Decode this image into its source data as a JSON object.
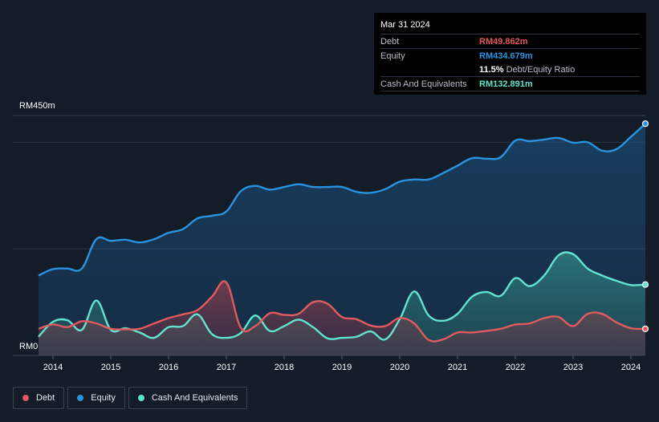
{
  "tooltip": {
    "date": "Mar 31 2024",
    "debt_label": "Debt",
    "debt_value": "RM49.862m",
    "equity_label": "Equity",
    "equity_value": "RM434.679m",
    "ratio_value": "11.5%",
    "ratio_label": "Debt/Equity Ratio",
    "cash_label": "Cash And Equivalents",
    "cash_value": "RM132.891m"
  },
  "legend": {
    "debt": "Debt",
    "equity": "Equity",
    "cash": "Cash And Equivalents"
  },
  "colors": {
    "background": "#141c28",
    "debt": "#e05a5e",
    "equity": "#2a93e0",
    "cash": "#62e3cf",
    "grid": "#2c3442",
    "axis_text": "#ffffff"
  },
  "chart_data": {
    "type": "area",
    "title": "",
    "xlabel": "",
    "ylabel": "",
    "y_unit": "RM m",
    "ylim": [
      0,
      450
    ],
    "xlim": [
      2013.75,
      2024.25
    ],
    "y_axis_labels": [
      {
        "value": 450,
        "text": "RM450m"
      },
      {
        "value": 0,
        "text": "RM0"
      }
    ],
    "gridlines": [
      400,
      200
    ],
    "x_ticks": [
      {
        "value": 2014,
        "text": "2014"
      },
      {
        "value": 2015,
        "text": "2015"
      },
      {
        "value": 2016,
        "text": "2016"
      },
      {
        "value": 2017,
        "text": "2017"
      },
      {
        "value": 2018,
        "text": "2018"
      },
      {
        "value": 2019,
        "text": "2019"
      },
      {
        "value": 2020,
        "text": "2020"
      },
      {
        "value": 2021,
        "text": "2021"
      },
      {
        "value": 2022,
        "text": "2022"
      },
      {
        "value": 2023,
        "text": "2023"
      },
      {
        "value": 2024,
        "text": "2024"
      }
    ],
    "series": [
      {
        "name": "Equity",
        "color": "#2a93e0",
        "points": [
          [
            2013.75,
            150
          ],
          [
            2014.0,
            162
          ],
          [
            2014.25,
            163
          ],
          [
            2014.5,
            163
          ],
          [
            2014.75,
            218
          ],
          [
            2015.0,
            215
          ],
          [
            2015.25,
            217
          ],
          [
            2015.5,
            212
          ],
          [
            2015.75,
            218
          ],
          [
            2016.0,
            230
          ],
          [
            2016.25,
            237
          ],
          [
            2016.5,
            257
          ],
          [
            2016.75,
            262
          ],
          [
            2017.0,
            270
          ],
          [
            2017.25,
            308
          ],
          [
            2017.5,
            318
          ],
          [
            2017.75,
            311
          ],
          [
            2018.0,
            316
          ],
          [
            2018.25,
            321
          ],
          [
            2018.5,
            316
          ],
          [
            2018.75,
            316
          ],
          [
            2019.0,
            316
          ],
          [
            2019.25,
            307
          ],
          [
            2019.5,
            305
          ],
          [
            2019.75,
            312
          ],
          [
            2020.0,
            326
          ],
          [
            2020.25,
            330
          ],
          [
            2020.5,
            330
          ],
          [
            2020.75,
            342
          ],
          [
            2021.0,
            356
          ],
          [
            2021.25,
            370
          ],
          [
            2021.5,
            369
          ],
          [
            2021.75,
            372
          ],
          [
            2022.0,
            403
          ],
          [
            2022.25,
            402
          ],
          [
            2022.5,
            405
          ],
          [
            2022.75,
            408
          ],
          [
            2023.0,
            399
          ],
          [
            2023.25,
            400
          ],
          [
            2023.5,
            384
          ],
          [
            2023.75,
            387
          ],
          [
            2024.0,
            410
          ],
          [
            2024.25,
            434.679
          ]
        ]
      },
      {
        "name": "Cash And Equivalents",
        "color": "#62e3cf",
        "points": [
          [
            2013.75,
            35
          ],
          [
            2014.0,
            63
          ],
          [
            2014.25,
            66
          ],
          [
            2014.5,
            48
          ],
          [
            2014.75,
            103
          ],
          [
            2015.0,
            48
          ],
          [
            2015.25,
            51
          ],
          [
            2015.5,
            43
          ],
          [
            2015.75,
            33
          ],
          [
            2016.0,
            53
          ],
          [
            2016.25,
            55
          ],
          [
            2016.5,
            77
          ],
          [
            2016.75,
            40
          ],
          [
            2017.0,
            33
          ],
          [
            2017.25,
            42
          ],
          [
            2017.5,
            75
          ],
          [
            2017.75,
            46
          ],
          [
            2018.0,
            55
          ],
          [
            2018.25,
            67
          ],
          [
            2018.5,
            53
          ],
          [
            2018.75,
            32
          ],
          [
            2019.0,
            33
          ],
          [
            2019.25,
            35
          ],
          [
            2019.5,
            45
          ],
          [
            2019.75,
            30
          ],
          [
            2020.0,
            68
          ],
          [
            2020.25,
            120
          ],
          [
            2020.5,
            75
          ],
          [
            2020.75,
            65
          ],
          [
            2021.0,
            78
          ],
          [
            2021.25,
            110
          ],
          [
            2021.5,
            119
          ],
          [
            2021.75,
            112
          ],
          [
            2022.0,
            145
          ],
          [
            2022.25,
            130
          ],
          [
            2022.5,
            150
          ],
          [
            2022.75,
            188
          ],
          [
            2023.0,
            190
          ],
          [
            2023.25,
            163
          ],
          [
            2023.5,
            150
          ],
          [
            2023.75,
            140
          ],
          [
            2024.0,
            132
          ],
          [
            2024.25,
            132.891
          ]
        ]
      },
      {
        "name": "Debt",
        "color": "#e05a5e",
        "points": [
          [
            2013.75,
            50
          ],
          [
            2014.0,
            58
          ],
          [
            2014.25,
            53
          ],
          [
            2014.5,
            64
          ],
          [
            2014.75,
            60
          ],
          [
            2015.0,
            50
          ],
          [
            2015.25,
            49
          ],
          [
            2015.5,
            50
          ],
          [
            2015.75,
            60
          ],
          [
            2016.0,
            70
          ],
          [
            2016.25,
            77
          ],
          [
            2016.5,
            85
          ],
          [
            2016.75,
            110
          ],
          [
            2017.0,
            137
          ],
          [
            2017.25,
            52
          ],
          [
            2017.5,
            55
          ],
          [
            2017.75,
            79
          ],
          [
            2018.0,
            76
          ],
          [
            2018.25,
            78
          ],
          [
            2018.5,
            100
          ],
          [
            2018.75,
            97
          ],
          [
            2019.0,
            72
          ],
          [
            2019.25,
            68
          ],
          [
            2019.5,
            56
          ],
          [
            2019.75,
            55
          ],
          [
            2020.0,
            70
          ],
          [
            2020.25,
            60
          ],
          [
            2020.5,
            29
          ],
          [
            2020.75,
            30
          ],
          [
            2021.0,
            43
          ],
          [
            2021.25,
            43
          ],
          [
            2021.5,
            46
          ],
          [
            2021.75,
            50
          ],
          [
            2022.0,
            58
          ],
          [
            2022.25,
            60
          ],
          [
            2022.5,
            70
          ],
          [
            2022.75,
            72
          ],
          [
            2023.0,
            55
          ],
          [
            2023.25,
            78
          ],
          [
            2023.5,
            78
          ],
          [
            2023.75,
            62
          ],
          [
            2024.0,
            51
          ],
          [
            2024.25,
            49.862
          ]
        ]
      }
    ]
  }
}
